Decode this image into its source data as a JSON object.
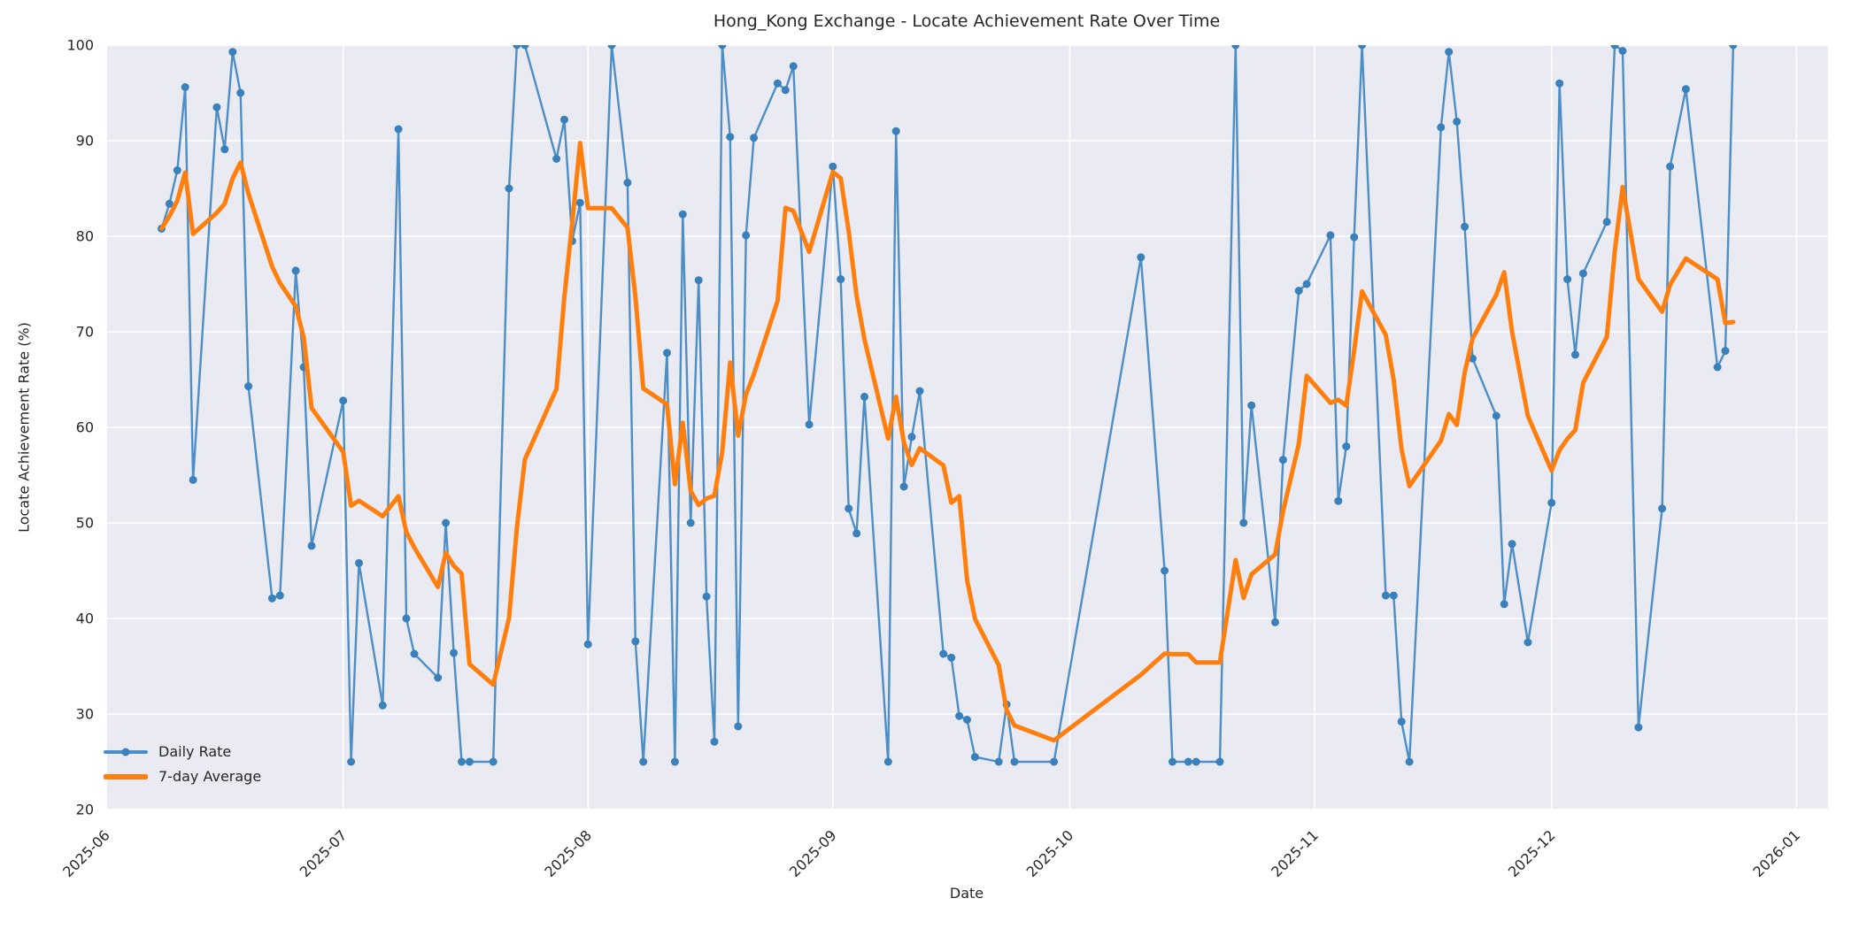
{
  "chart": {
    "title": "Hong_Kong Exchange - Locate Achievement Rate Over Time",
    "xlabel": "Date",
    "ylabel": "Locate Achievement Rate (%)",
    "legend": [
      "Daily Rate",
      "7-day Average"
    ],
    "x_tick_labels": [
      "2025-06",
      "2025-07",
      "2025-08",
      "2025-09",
      "2025-10",
      "2025-11",
      "2025-12",
      "2026-01"
    ],
    "y_tick_labels": [
      "20",
      "30",
      "40",
      "50",
      "60",
      "70",
      "80",
      "90",
      "100"
    ],
    "colors": {
      "daily_line": "#4d8ec5",
      "daily_marker": "#3a80ba",
      "average_line": "#ff7f0e",
      "plot_background": "#eaeaf2",
      "gridline": "#ffffff",
      "text": "#262626"
    }
  },
  "chart_data": {
    "type": "line",
    "title": "Hong_Kong Exchange - Locate Achievement Rate Over Time",
    "xlabel": "Date",
    "ylabel": "Locate Achievement Rate (%)",
    "ylim": [
      20,
      100
    ],
    "x_range": [
      "2025-06-01",
      "2026-01-05"
    ],
    "grid": true,
    "legend_position": "lower left",
    "x_ticks": [
      "2025-06-01",
      "2025-07-01",
      "2025-08-01",
      "2025-09-01",
      "2025-10-01",
      "2025-11-01",
      "2025-12-01",
      "2026-01-01"
    ],
    "y_ticks": [
      20,
      30,
      40,
      50,
      60,
      70,
      80,
      90,
      100
    ],
    "series": [
      {
        "name": "Daily Rate",
        "style": "line+markers",
        "dates": [
          "2025-06-08",
          "2025-06-09",
          "2025-06-10",
          "2025-06-11",
          "2025-06-12",
          "2025-06-15",
          "2025-06-16",
          "2025-06-17",
          "2025-06-18",
          "2025-06-19",
          "2025-06-22",
          "2025-06-23",
          "2025-06-25",
          "2025-06-26",
          "2025-06-27",
          "2025-07-01",
          "2025-07-02",
          "2025-07-03",
          "2025-07-06",
          "2025-07-08",
          "2025-07-09",
          "2025-07-10",
          "2025-07-13",
          "2025-07-14",
          "2025-07-15",
          "2025-07-16",
          "2025-07-17",
          "2025-07-20",
          "2025-07-22",
          "2025-07-23",
          "2025-07-24",
          "2025-07-28",
          "2025-07-29",
          "2025-07-30",
          "2025-07-31",
          "2025-08-01",
          "2025-08-04",
          "2025-08-06",
          "2025-08-07",
          "2025-08-08",
          "2025-08-11",
          "2025-08-12",
          "2025-08-13",
          "2025-08-14",
          "2025-08-15",
          "2025-08-16",
          "2025-08-17",
          "2025-08-18",
          "2025-08-19",
          "2025-08-20",
          "2025-08-21",
          "2025-08-22",
          "2025-08-25",
          "2025-08-26",
          "2025-08-27",
          "2025-08-29",
          "2025-09-01",
          "2025-09-02",
          "2025-09-03",
          "2025-09-04",
          "2025-09-05",
          "2025-09-08",
          "2025-09-09",
          "2025-09-10",
          "2025-09-11",
          "2025-09-12",
          "2025-09-15",
          "2025-09-16",
          "2025-09-17",
          "2025-09-18",
          "2025-09-19",
          "2025-09-22",
          "2025-09-23",
          "2025-09-24",
          "2025-09-29",
          "2025-10-10",
          "2025-10-13",
          "2025-10-14",
          "2025-10-16",
          "2025-10-17",
          "2025-10-20",
          "2025-10-22",
          "2025-10-23",
          "2025-10-24",
          "2025-10-27",
          "2025-10-28",
          "2025-10-30",
          "2025-10-31",
          "2025-11-03",
          "2025-11-04",
          "2025-11-05",
          "2025-11-06",
          "2025-11-07",
          "2025-11-10",
          "2025-11-11",
          "2025-11-12",
          "2025-11-13",
          "2025-11-17",
          "2025-11-18",
          "2025-11-19",
          "2025-11-20",
          "2025-11-21",
          "2025-11-24",
          "2025-11-25",
          "2025-11-26",
          "2025-11-28",
          "2025-12-01",
          "2025-12-02",
          "2025-12-03",
          "2025-12-04",
          "2025-12-05",
          "2025-12-08",
          "2025-12-09",
          "2025-12-10",
          "2025-12-12",
          "2025-12-15",
          "2025-12-16",
          "2025-12-18",
          "2025-12-22",
          "2025-12-23",
          "2025-12-24"
        ],
        "values": [
          80.8,
          83.4,
          86.9,
          95.6,
          54.5,
          93.5,
          89.1,
          99.3,
          95.0,
          64.3,
          42.1,
          42.4,
          76.4,
          66.3,
          47.6,
          62.8,
          25.0,
          45.8,
          30.9,
          91.2,
          40.0,
          36.3,
          33.8,
          50.0,
          36.4,
          25.0,
          25.0,
          25.0,
          85.0,
          100.0,
          100.0,
          88.1,
          92.2,
          79.5,
          83.5,
          37.3,
          100.0,
          85.6,
          37.6,
          25.0,
          67.8,
          25.0,
          82.3,
          50.0,
          75.4,
          42.3,
          27.1,
          100.0,
          90.4,
          28.7,
          80.1,
          90.3,
          96.0,
          95.3,
          97.8,
          60.3,
          87.3,
          75.5,
          51.5,
          48.9,
          63.2,
          25.0,
          91.0,
          53.8,
          59.0,
          63.8,
          36.3,
          35.9,
          29.8,
          29.4,
          25.5,
          25.0,
          31.0,
          25.0,
          25.0,
          77.8,
          45.0,
          25.0,
          25.0,
          25.0,
          25.0,
          100.0,
          50.0,
          62.3,
          39.6,
          56.6,
          74.3,
          75.0,
          80.1,
          52.3,
          58.0,
          79.9,
          100.0,
          42.4,
          42.4,
          29.2,
          25.0,
          91.4,
          99.3,
          92.0,
          81.0,
          67.2,
          61.2,
          41.5,
          47.8,
          37.5,
          52.1,
          96.0,
          75.5,
          67.6,
          76.1,
          81.5,
          100.0,
          99.4,
          28.6,
          51.5,
          87.3,
          95.4,
          66.3,
          68.0,
          100.0
        ]
      },
      {
        "name": "7-day Average",
        "style": "line",
        "derivation": "rolling_mean_of_daily_rate_window_7_points_min_periods_1"
      }
    ]
  }
}
